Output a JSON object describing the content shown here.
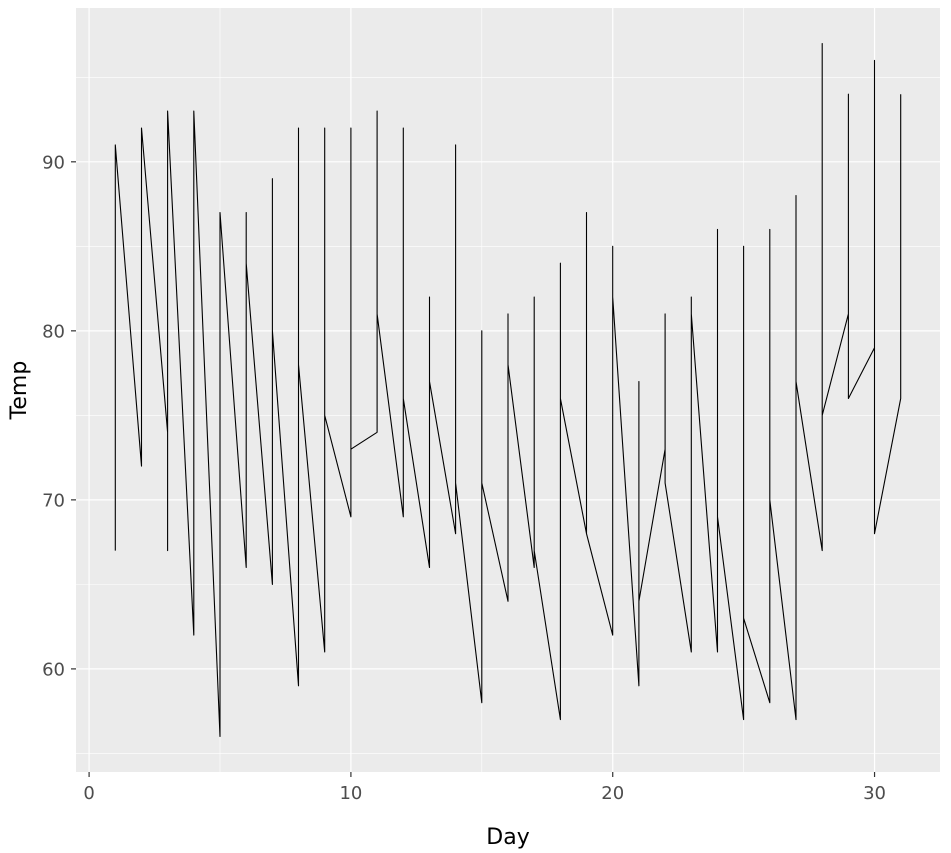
{
  "figure": {
    "background": "#FFFFFF",
    "panel_background": "#EBEBEB",
    "grid_major_color": "#FFFFFF",
    "grid_minor_color": "#FFFFFF",
    "tick_mark_color": "#333333",
    "tick_label_color": "#4D4D4D",
    "axis_title_color": "#000000",
    "line_color": "#000000"
  },
  "chart_data": {
    "type": "line",
    "title": "",
    "xlabel": "Day",
    "ylabel": "Temp",
    "xlim": [
      -0.5,
      32.5
    ],
    "ylim": [
      53.9,
      99.1
    ],
    "x_ticks": [
      0,
      10,
      20,
      30
    ],
    "y_ticks": [
      60,
      70,
      80,
      90
    ],
    "x_minor_ticks": [
      5,
      15,
      25
    ],
    "y_minor_ticks": [
      55,
      65,
      75,
      85,
      95
    ],
    "grid": true,
    "legend": "none",
    "series": [
      {
        "name": "Temp",
        "points": [
          [
            1,
            67
          ],
          [
            1,
            78
          ],
          [
            1,
            84
          ],
          [
            1,
            81
          ],
          [
            1,
            91
          ],
          [
            2,
            72
          ],
          [
            2,
            74
          ],
          [
            2,
            85
          ],
          [
            2,
            81
          ],
          [
            2,
            92
          ],
          [
            3,
            74
          ],
          [
            3,
            67
          ],
          [
            3,
            81
          ],
          [
            3,
            82
          ],
          [
            3,
            93
          ],
          [
            4,
            62
          ],
          [
            4,
            84
          ],
          [
            4,
            84
          ],
          [
            4,
            86
          ],
          [
            4,
            93
          ],
          [
            5,
            56
          ],
          [
            5,
            85
          ],
          [
            5,
            83
          ],
          [
            5,
            85
          ],
          [
            5,
            87
          ],
          [
            6,
            66
          ],
          [
            6,
            79
          ],
          [
            6,
            83
          ],
          [
            6,
            87
          ],
          [
            6,
            84
          ],
          [
            7,
            65
          ],
          [
            7,
            82
          ],
          [
            7,
            88
          ],
          [
            7,
            89
          ],
          [
            7,
            80
          ],
          [
            8,
            59
          ],
          [
            8,
            87
          ],
          [
            8,
            92
          ],
          [
            8,
            90
          ],
          [
            8,
            78
          ],
          [
            9,
            61
          ],
          [
            9,
            90
          ],
          [
            9,
            92
          ],
          [
            9,
            90
          ],
          [
            9,
            75
          ],
          [
            10,
            69
          ],
          [
            10,
            87
          ],
          [
            10,
            89
          ],
          [
            10,
            92
          ],
          [
            10,
            73
          ],
          [
            11,
            74
          ],
          [
            11,
            93
          ],
          [
            11,
            82
          ],
          [
            11,
            86
          ],
          [
            11,
            81
          ],
          [
            12,
            69
          ],
          [
            12,
            92
          ],
          [
            12,
            73
          ],
          [
            12,
            86
          ],
          [
            12,
            76
          ],
          [
            13,
            66
          ],
          [
            13,
            82
          ],
          [
            13,
            81
          ],
          [
            13,
            82
          ],
          [
            13,
            77
          ],
          [
            14,
            68
          ],
          [
            14,
            80
          ],
          [
            14,
            91
          ],
          [
            14,
            80
          ],
          [
            14,
            71
          ],
          [
            15,
            58
          ],
          [
            15,
            79
          ],
          [
            15,
            80
          ],
          [
            15,
            79
          ],
          [
            15,
            71
          ],
          [
            16,
            64
          ],
          [
            16,
            77
          ],
          [
            16,
            81
          ],
          [
            16,
            77
          ],
          [
            16,
            78
          ],
          [
            17,
            66
          ],
          [
            17,
            72
          ],
          [
            17,
            82
          ],
          [
            17,
            79
          ],
          [
            17,
            67
          ],
          [
            18,
            57
          ],
          [
            18,
            65
          ],
          [
            18,
            84
          ],
          [
            18,
            76
          ],
          [
            18,
            76
          ],
          [
            19,
            68
          ],
          [
            19,
            73
          ],
          [
            19,
            87
          ],
          [
            19,
            78
          ],
          [
            19,
            68
          ],
          [
            20,
            62
          ],
          [
            20,
            76
          ],
          [
            20,
            85
          ],
          [
            20,
            78
          ],
          [
            20,
            82
          ],
          [
            21,
            59
          ],
          [
            21,
            77
          ],
          [
            21,
            74
          ],
          [
            21,
            77
          ],
          [
            21,
            64
          ],
          [
            22,
            73
          ],
          [
            22,
            76
          ],
          [
            22,
            81
          ],
          [
            22,
            72
          ],
          [
            22,
            71
          ],
          [
            23,
            61
          ],
          [
            23,
            76
          ],
          [
            23,
            82
          ],
          [
            23,
            75
          ],
          [
            23,
            81
          ],
          [
            24,
            61
          ],
          [
            24,
            76
          ],
          [
            24,
            86
          ],
          [
            24,
            79
          ],
          [
            24,
            69
          ],
          [
            25,
            57
          ],
          [
            25,
            75
          ],
          [
            25,
            85
          ],
          [
            25,
            81
          ],
          [
            25,
            63
          ],
          [
            26,
            58
          ],
          [
            26,
            78
          ],
          [
            26,
            82
          ],
          [
            26,
            86
          ],
          [
            26,
            70
          ],
          [
            27,
            57
          ],
          [
            27,
            73
          ],
          [
            27,
            86
          ],
          [
            27,
            88
          ],
          [
            27,
            77
          ],
          [
            28,
            67
          ],
          [
            28,
            80
          ],
          [
            28,
            88
          ],
          [
            28,
            97
          ],
          [
            28,
            75
          ],
          [
            29,
            81
          ],
          [
            29,
            77
          ],
          [
            29,
            86
          ],
          [
            29,
            94
          ],
          [
            29,
            76
          ],
          [
            30,
            79
          ],
          [
            30,
            83
          ],
          [
            30,
            83
          ],
          [
            30,
            96
          ],
          [
            30,
            68
          ],
          [
            31,
            76
          ],
          [
            31,
            81
          ],
          [
            31,
            94
          ]
        ]
      }
    ]
  }
}
